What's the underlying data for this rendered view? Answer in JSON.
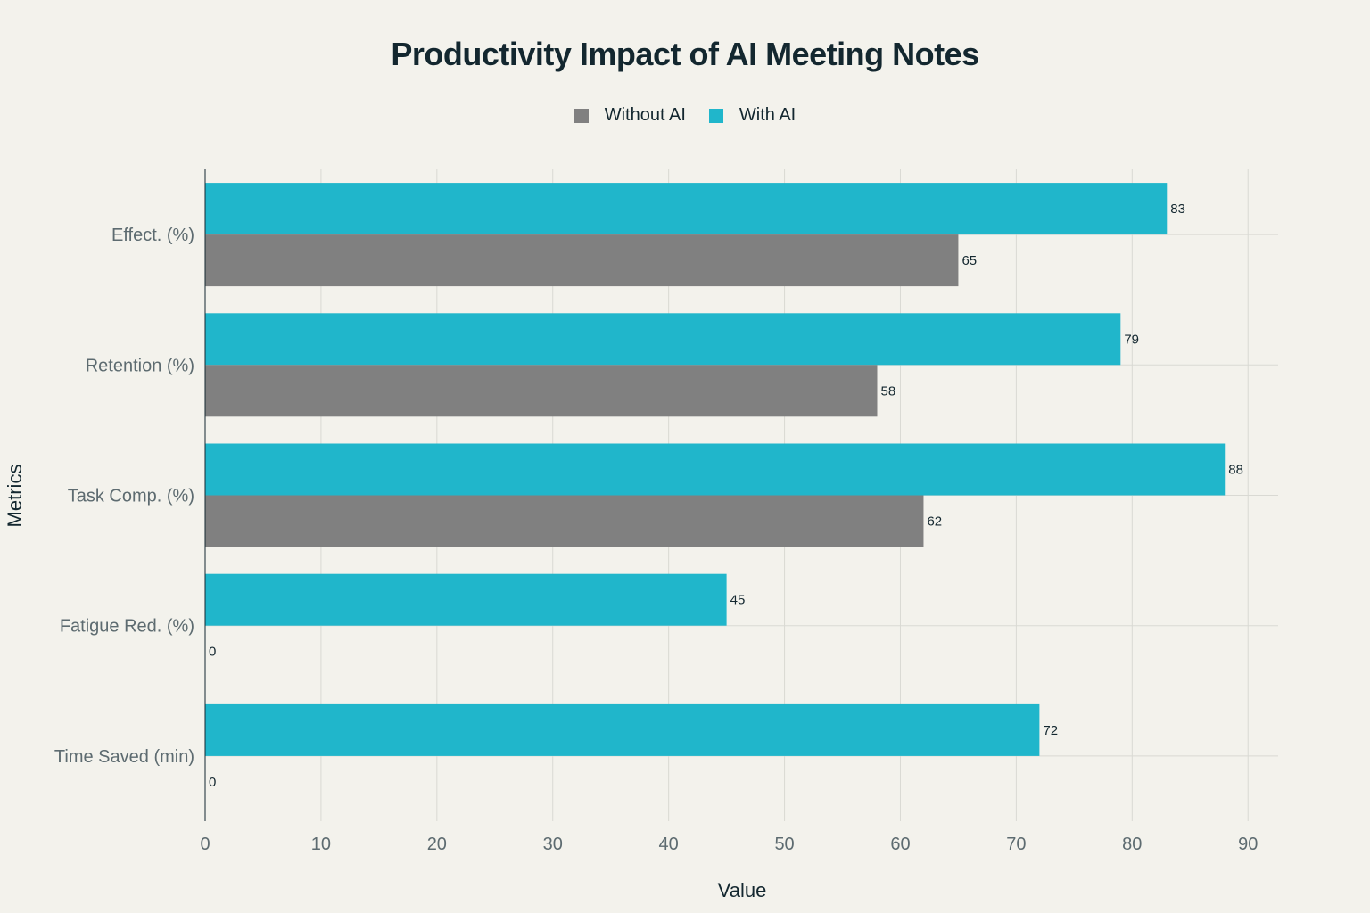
{
  "chart_data": {
    "type": "bar",
    "orientation": "horizontal",
    "title": "Productivity Impact of AI Meeting Notes",
    "xlabel": "Value",
    "ylabel": "Metrics",
    "categories": [
      "Effect. (%)",
      "Retention (%)",
      "Task Comp. (%)",
      "Fatigue Red. (%)",
      "Time Saved (min)"
    ],
    "series": [
      {
        "name": "Without AI",
        "color": "#808080",
        "values": [
          65,
          58,
          62,
          0,
          0
        ]
      },
      {
        "name": "With AI",
        "color": "#20b6cb",
        "values": [
          83,
          79,
          88,
          45,
          72
        ]
      }
    ],
    "xlim": [
      0,
      92.6
    ],
    "xticks": [
      0,
      10,
      20,
      30,
      40,
      50,
      60,
      70,
      80,
      90
    ],
    "grid": true,
    "legend_position": "top-center",
    "data_labels": true
  }
}
